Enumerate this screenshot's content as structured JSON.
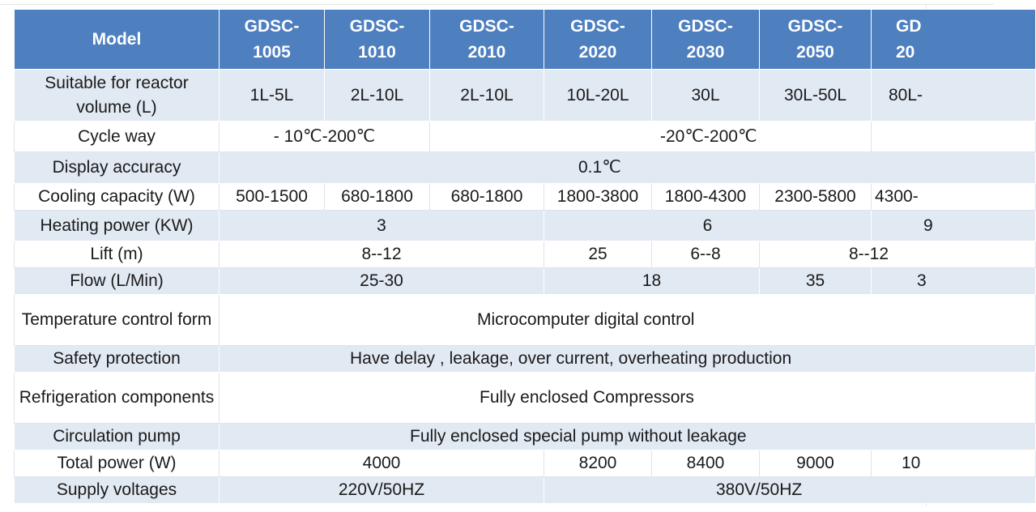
{
  "table": {
    "header": {
      "label": "Model",
      "models": [
        {
          "line1": "GDSC-",
          "line2": "1005"
        },
        {
          "line1": "GDSC-",
          "line2": "1010"
        },
        {
          "line1": "GDSC-",
          "line2": "2010"
        },
        {
          "line1": "GDSC-",
          "line2": "2020"
        },
        {
          "line1": "GDSC-",
          "line2": "2030"
        },
        {
          "line1": "GDSC-",
          "line2": "2050"
        },
        {
          "line1": "GD",
          "line2": "20"
        }
      ]
    },
    "rows": {
      "reactor_volume": {
        "label": "Suitable for reactor volume (L)",
        "values": [
          "1L-5L",
          "2L-10L",
          "2L-10L",
          "10L-20L",
          "30L",
          "30L-50L",
          "80L-"
        ]
      },
      "cycle_way": {
        "label": "Cycle way",
        "values": [
          "- 10℃-200℃",
          "-20℃-200℃"
        ]
      },
      "display_accuracy": {
        "label": "Display accuracy",
        "value": "0.1℃"
      },
      "cooling_capacity": {
        "label": "Cooling capacity (W)",
        "values": [
          "500-1500",
          "680-1800",
          "680-1800",
          "1800-3800",
          "1800-4300",
          "2300-5800",
          "4300-"
        ]
      },
      "heating_power": {
        "label": "Heating power (KW)",
        "values": [
          "3",
          "6",
          "9"
        ]
      },
      "lift": {
        "label": "Lift (m)",
        "values": [
          "8--12",
          "25",
          "6--8",
          "8--12"
        ]
      },
      "flow": {
        "label": "Flow (L/Min)",
        "values": [
          "25-30",
          "18",
          "35",
          "3"
        ]
      },
      "temp_control": {
        "label": "Temperature control form",
        "value": "Microcomputer digital control"
      },
      "safety": {
        "label": "Safety protection",
        "value": "Have delay , leakage, over current, overheating production"
      },
      "refrigeration": {
        "label": "Refrigeration components",
        "value": "Fully enclosed Compressors"
      },
      "pump": {
        "label": "Circulation pump",
        "value": "Fully enclosed special pump without leakage"
      },
      "total_power": {
        "label": "Total power (W)",
        "values": [
          "4000",
          "8200",
          "8400",
          "9000",
          "10"
        ]
      },
      "voltage": {
        "label": "Supply voltages",
        "values": [
          "220V/50HZ",
          "380V/50HZ"
        ]
      }
    }
  }
}
